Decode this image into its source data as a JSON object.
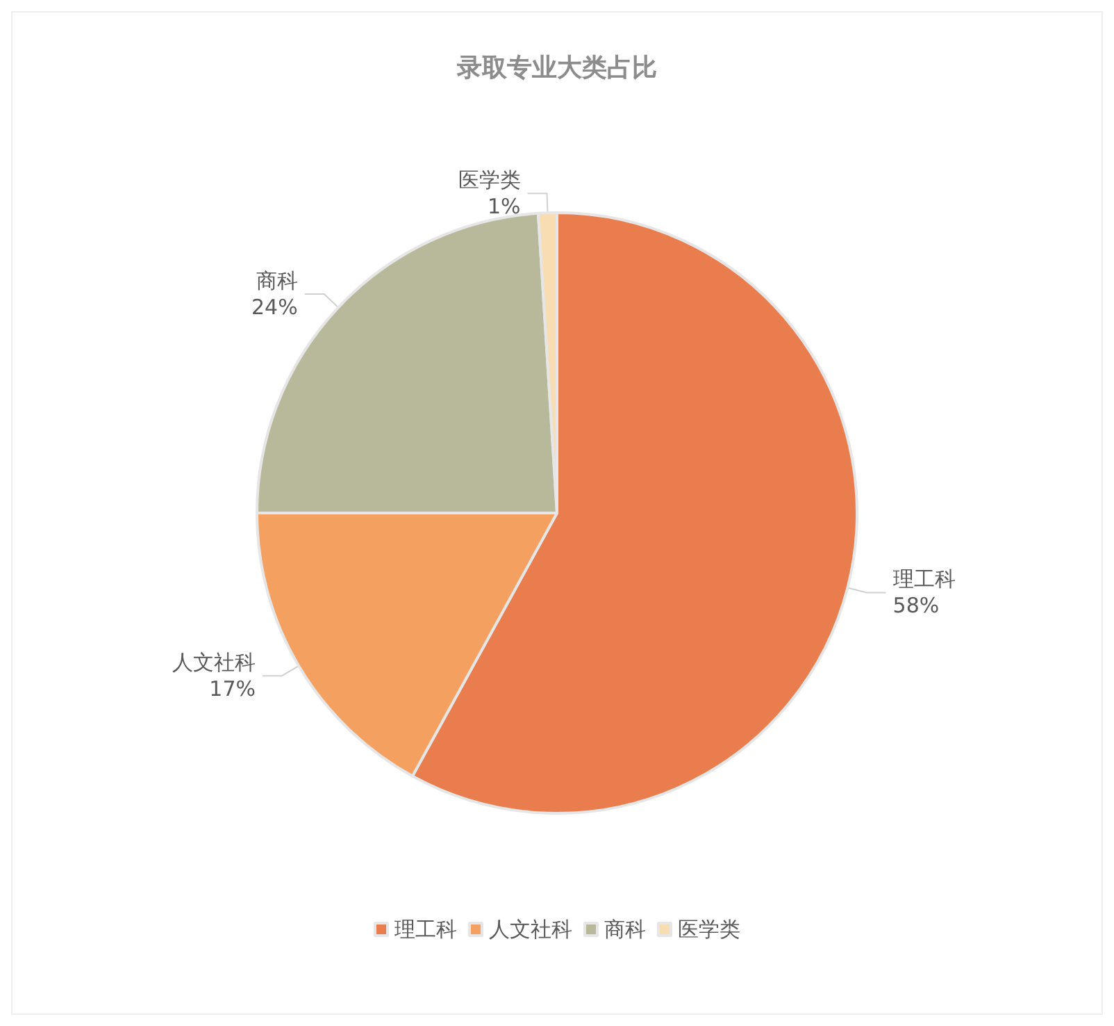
{
  "chart_data": {
    "type": "pie",
    "title": "录取专业大类占比",
    "categories": [
      "理工科",
      "人文社科",
      "商科",
      "医学类"
    ],
    "values": [
      58,
      17,
      24,
      1
    ],
    "value_labels": [
      "58%",
      "17%",
      "24%",
      "1%"
    ],
    "colors": [
      "#ea7d4d",
      "#f4a060",
      "#b8b89a",
      "#f8dcb2"
    ],
    "legend": "bottom"
  }
}
